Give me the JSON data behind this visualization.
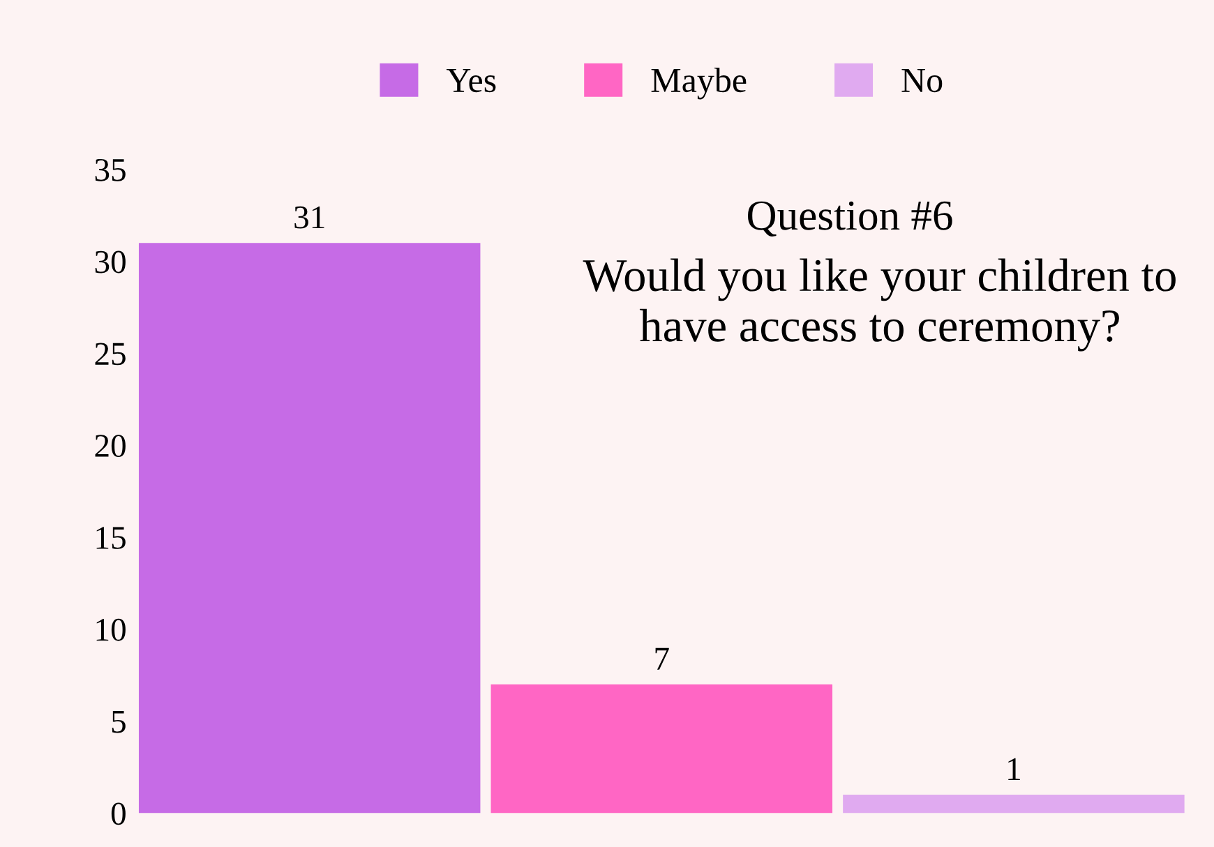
{
  "chart_data": {
    "type": "bar",
    "title": "Question #6",
    "subtitle": "Would you like your children to have access to ceremony?",
    "categories": [
      null,
      null,
      null
    ],
    "series": [
      {
        "name": "Yes",
        "color": "#c66be6",
        "values": [
          31,
          null,
          null
        ]
      },
      {
        "name": "Maybe",
        "color": "#ff66c4",
        "values": [
          null,
          7,
          null
        ]
      },
      {
        "name": "No",
        "color": "#e0aaf0",
        "values": [
          null,
          null,
          1
        ]
      }
    ],
    "stacked": true,
    "ylim": [
      0,
      35
    ],
    "yticks": [
      0,
      5,
      10,
      15,
      20,
      25,
      30,
      35
    ],
    "data_labels": true,
    "legend": "top",
    "grid": false
  }
}
